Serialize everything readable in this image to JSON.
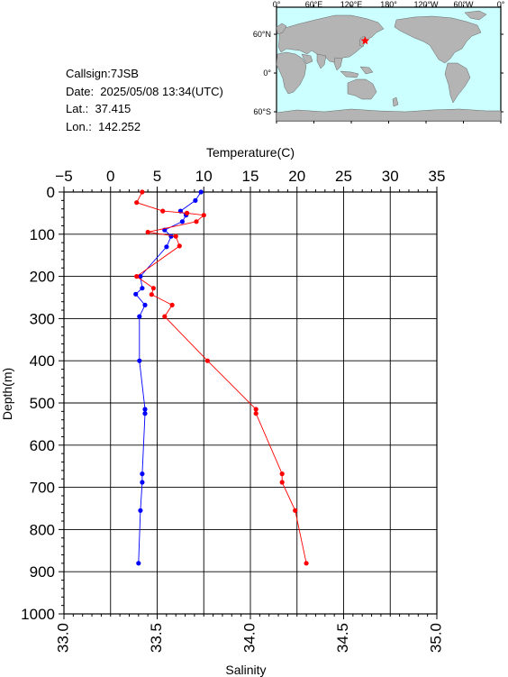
{
  "station": {
    "callsign_label": "Callsign:7JSB",
    "date_label": "Date:  2025/05/08 13:34(UTC)",
    "lat_label": "Lat.:  37.415",
    "lon_label": "Lon.:  142.252"
  },
  "map": {
    "lon_ticks": [
      "0°",
      "60°E",
      "120°E",
      "180°",
      "120°W",
      "60°W",
      "0°"
    ],
    "lat_ticks": [
      "60°N",
      "0°",
      "60°S"
    ],
    "ocean_color": "#ccffff",
    "land_color": "#b4b4b4",
    "marker_color": "#ff0000",
    "marker": {
      "lat": 37.415,
      "lon": 142.252
    }
  },
  "chart_data": {
    "type": "line",
    "ylabel": "Depth(m)",
    "ylim": [
      0,
      1000
    ],
    "yticks": [
      0,
      100,
      200,
      300,
      400,
      500,
      600,
      700,
      800,
      900,
      1000
    ],
    "top_axis": {
      "label": "Temperature(C)",
      "range": [
        -5,
        35
      ],
      "ticks": [
        -5,
        0,
        5,
        10,
        15,
        20,
        25,
        30,
        35
      ],
      "tick_labels": [
        "−5",
        "0",
        "5",
        "10",
        "15",
        "20",
        "25",
        "30",
        "35"
      ]
    },
    "bottom_axis": {
      "label": "Salinity",
      "range": [
        33.0,
        35.0
      ],
      "ticks": [
        33.0,
        33.5,
        34.0,
        34.5,
        35.0
      ],
      "tick_labels": [
        "33.0",
        "33.5",
        "34.0",
        "34.5",
        "35.0"
      ]
    },
    "grid": true,
    "series": [
      {
        "axis": "temperature",
        "color": "#0000ff",
        "depth": [
          0,
          20,
          45,
          55,
          70,
          90,
          105,
          130,
          200,
          228,
          242,
          268,
          295,
          400,
          515,
          525,
          668,
          688,
          755,
          880
        ],
        "values": [
          9.7,
          9.1,
          7.5,
          8.1,
          7.7,
          5.8,
          6.5,
          6.0,
          3.2,
          3.4,
          2.7,
          3.7,
          3.1,
          3.1,
          3.7,
          3.7,
          3.4,
          3.4,
          3.2,
          3.0
        ]
      },
      {
        "axis": "salinity",
        "color": "#ff0000",
        "depth": [
          0,
          25,
          45,
          50,
          55,
          70,
          95,
          105,
          128,
          200,
          228,
          243,
          268,
          295,
          400,
          515,
          525,
          668,
          688,
          755,
          880
        ],
        "values": [
          33.42,
          33.39,
          33.53,
          33.66,
          33.75,
          33.71,
          33.45,
          33.6,
          33.62,
          33.39,
          33.48,
          33.47,
          33.58,
          33.54,
          33.77,
          34.03,
          34.03,
          34.17,
          34.17,
          34.24,
          34.3
        ]
      }
    ]
  }
}
